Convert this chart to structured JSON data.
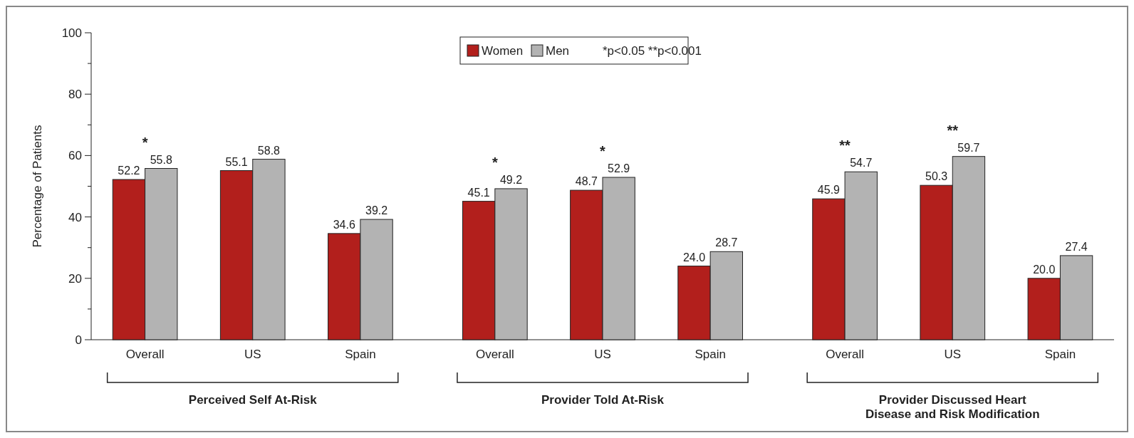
{
  "chart_data": {
    "type": "bar",
    "ylabel": "Percentage of Patients",
    "categories": [
      "Overall",
      "US",
      "Spain",
      "Overall",
      "US",
      "Spain",
      "Overall",
      "US",
      "Spain"
    ],
    "series": [
      {
        "name": "Women",
        "color": "#b21f1c",
        "values": [
          52.2,
          55.1,
          34.6,
          45.1,
          48.7,
          24.0,
          45.9,
          50.3,
          20.0
        ],
        "value_labels": [
          "52.2",
          "55.1",
          "34.6",
          "45.1",
          "48.7",
          "24.0",
          "45.9",
          "50.3",
          "20.0"
        ]
      },
      {
        "name": "Men",
        "color": "#b3b3b3",
        "values": [
          55.8,
          58.8,
          39.2,
          49.2,
          52.9,
          28.7,
          54.7,
          59.7,
          27.4
        ],
        "value_labels": [
          "55.8",
          "58.8",
          "39.2",
          "49.2",
          "52.9",
          "28.7",
          "54.7",
          "59.7",
          "27.4"
        ]
      }
    ],
    "ylim": [
      0,
      100
    ],
    "yticks": [
      0,
      {
        "value": 10,
        "label": null
      },
      20,
      {
        "value": 30,
        "label": null
      },
      40,
      {
        "value": 50,
        "label": null
      },
      60,
      {
        "value": 70,
        "label": null
      },
      80,
      {
        "value": 90,
        "label": null
      },
      100
    ],
    "legend": "top",
    "annotations": [
      "Perceived Self At-Risk",
      "Provider Told At-Risk",
      "Provider Discussed Heart Disease and Risk Modification",
      "*p<0.05 **p<0.001",
      "*",
      "*",
      "*",
      "**",
      "**"
    ]
  }
}
